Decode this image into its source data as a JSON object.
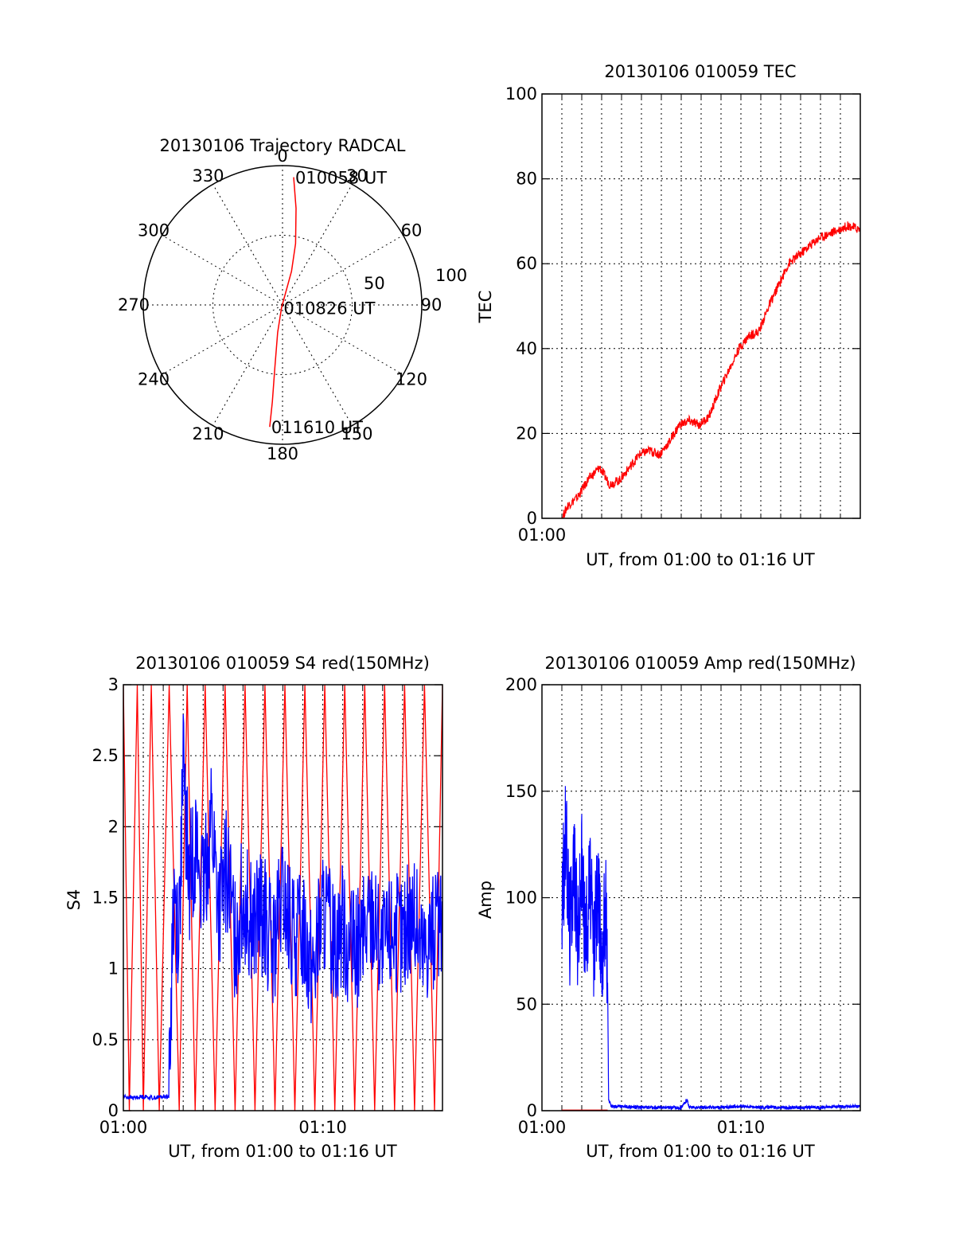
{
  "chart_data": [
    {
      "type": "polar",
      "title": "20130106 Trajectory RADCAL",
      "azimuth_labels": [
        "0",
        "30",
        "60",
        "90",
        "120",
        "150",
        "180",
        "210",
        "240",
        "270",
        "300",
        "330"
      ],
      "radial_labels": [
        "50",
        "100"
      ],
      "annotations": [
        {
          "text": "010058 UT",
          "az": 5,
          "zenith": 92
        },
        {
          "text": "010826 UT",
          "az": 190,
          "zenith": 2
        },
        {
          "text": "011610 UT",
          "az": 186,
          "zenith": 88
        }
      ],
      "trajectory": [
        {
          "az": 5,
          "zenith": 92
        },
        {
          "az": 8,
          "zenith": 70
        },
        {
          "az": 12,
          "zenith": 45
        },
        {
          "az": 15,
          "zenith": 25
        },
        {
          "az": 200,
          "zenith": 2
        },
        {
          "az": 190,
          "zenith": 20
        },
        {
          "az": 187,
          "zenith": 45
        },
        {
          "az": 186,
          "zenith": 70
        },
        {
          "az": 186,
          "zenith": 88
        }
      ],
      "series_color": "#ff0000"
    },
    {
      "type": "line",
      "title": "20130106 010059 TEC",
      "xlabel": "UT, from 01:00 to 01:16 UT",
      "ylabel": "TEC",
      "xlim": [
        0,
        16
      ],
      "ylim": [
        0,
        100
      ],
      "yticks": [
        "0",
        "20",
        "40",
        "60",
        "80",
        "100"
      ],
      "xticks": [
        {
          "value": 0,
          "label": "01:00"
        }
      ],
      "grid": true,
      "series": [
        {
          "color": "#ff0000",
          "x": [
            1.0,
            1.3,
            1.8,
            2.3,
            2.9,
            3.4,
            3.9,
            4.4,
            4.9,
            5.4,
            5.9,
            6.4,
            6.9,
            7.4,
            7.9,
            8.4,
            8.9,
            9.4,
            9.9,
            10.4,
            10.9,
            11.4,
            11.9,
            12.4,
            12.9,
            13.4,
            13.9,
            14.4,
            14.9,
            15.4,
            16.0
          ],
          "y": [
            0,
            3,
            5,
            9,
            12,
            8,
            9,
            12,
            15,
            16,
            15,
            18,
            22,
            23,
            22,
            24,
            30,
            35,
            40,
            43,
            44,
            50,
            55,
            60,
            62,
            64,
            66,
            67,
            68,
            69,
            68
          ]
        }
      ]
    },
    {
      "type": "line",
      "title": "20130106 010059 S4 red(150MHz)",
      "xlabel": "UT, from 01:00 to 01:16 UT",
      "ylabel": "S4",
      "xlim": [
        0,
        16
      ],
      "ylim": [
        0,
        3
      ],
      "yticks": [
        "0",
        "0.5",
        "1",
        "1.5",
        "2",
        "2.5",
        "3"
      ],
      "xticks": [
        {
          "value": 0,
          "label": "01:00"
        },
        {
          "value": 10,
          "label": "01:10"
        }
      ],
      "grid": true,
      "series": [
        {
          "color": "#ff0000",
          "x": [
            0.0,
            0.3,
            0.7,
            1.0,
            1.4,
            1.8,
            2.3,
            2.8,
            3.2,
            3.6,
            4.1,
            4.6,
            5.1,
            5.6,
            6.1,
            6.6,
            7.1,
            7.6,
            8.1,
            8.6,
            9.1,
            9.6,
            10.1,
            10.6,
            11.1,
            11.6,
            12.1,
            12.6,
            13.1,
            13.6,
            14.1,
            14.6,
            15.1,
            15.6,
            16.0
          ],
          "y": [
            3,
            0,
            3,
            0,
            3,
            0,
            3,
            0,
            3,
            0,
            3,
            0,
            3,
            0,
            3,
            0,
            3,
            0,
            3,
            0,
            3,
            0,
            3,
            0,
            3,
            0,
            3,
            0,
            3,
            0,
            3,
            0,
            3,
            0,
            3
          ]
        },
        {
          "color": "#0000ff",
          "x": [
            0.0,
            0.5,
            1.0,
            1.5,
            2.0,
            2.3,
            2.5,
            2.8,
            3.0,
            3.3,
            3.6,
            4.0,
            4.4,
            4.8,
            5.2,
            5.6,
            6.0,
            6.5,
            7.0,
            7.5,
            8.0,
            8.5,
            9.0,
            9.5,
            10.0,
            10.5,
            11.0,
            11.5,
            12.0,
            12.5,
            13.0,
            13.5,
            14.0,
            14.5,
            15.0,
            15.5,
            16.0
          ],
          "y": [
            0.1,
            0.09,
            0.1,
            0.09,
            0.1,
            0.1,
            1.5,
            1.3,
            2.4,
            1.6,
            1.9,
            1.5,
            2.1,
            1.4,
            1.7,
            1.2,
            1.5,
            1.3,
            1.4,
            1.1,
            1.5,
            1.2,
            1.3,
            1.0,
            1.4,
            1.2,
            1.3,
            1.1,
            1.2,
            1.4,
            1.1,
            1.3,
            1.2,
            1.4,
            1.1,
            1.3,
            1.2
          ]
        }
      ]
    },
    {
      "type": "line",
      "title": "20130106 010059 Amp red(150MHz)",
      "xlabel": "UT, from 01:00 to 01:16 UT",
      "ylabel": "Amp",
      "xlim": [
        0,
        16
      ],
      "ylim": [
        0,
        200
      ],
      "yticks": [
        "0",
        "50",
        "100",
        "150",
        "200"
      ],
      "xticks": [
        {
          "value": 0,
          "label": "01:00"
        },
        {
          "value": 10,
          "label": "01:10"
        }
      ],
      "grid": true,
      "series": [
        {
          "color": "#0000ff",
          "x": [
            1.0,
            1.2,
            1.4,
            1.6,
            1.8,
            2.0,
            2.2,
            2.4,
            2.6,
            2.8,
            3.0,
            3.2,
            3.3,
            3.35,
            3.5,
            4.0,
            5.0,
            6.0,
            7.0,
            7.3,
            7.4,
            8.0,
            9.0,
            10.0,
            11.0,
            12.0,
            13.0,
            14.0,
            15.0,
            16.0
          ],
          "y": [
            95,
            130,
            85,
            120,
            80,
            115,
            78,
            110,
            75,
            105,
            72,
            100,
            60,
            5,
            2,
            2,
            1.5,
            1.5,
            1.5,
            5,
            1.5,
            1.5,
            1.5,
            2,
            1.5,
            1.5,
            1.5,
            1.5,
            2,
            2
          ]
        },
        {
          "color": "#ff0000",
          "x": [
            1.0,
            3.3
          ],
          "y": [
            0.3,
            0.3
          ]
        }
      ]
    }
  ]
}
